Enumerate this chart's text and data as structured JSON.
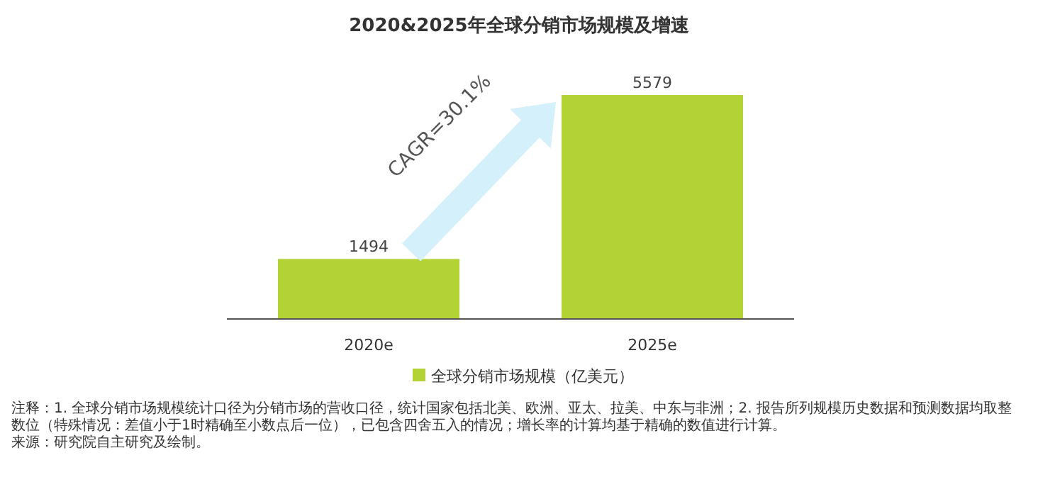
{
  "chart_data": {
    "type": "bar",
    "title": "2020&2025年全球分销市场规模及增速",
    "categories": [
      "2020e",
      "2025e"
    ],
    "series": [
      {
        "name": "全球分销市场规模（亿美元）",
        "color": "#b2d235",
        "values": [
          1494,
          5579
        ]
      }
    ],
    "data_labels": true,
    "legend": "bottom",
    "annotations": [
      "CAGR=30.1%",
      "注释：1. 全球分销市场规模统计口径为分销市场的营收口径，统计国家包括北美、欧洲、亚太、拉美、中东与非洲；2. 报告所列规模历史数据和预测数据均取整数位（特殊情况：差值小于1时精确至小数点后一位），已包含四舍五入的情况；增长率的计算均基于精确的数值进行计算。",
      "来源：研究院自主研究及绘制。"
    ]
  }
}
